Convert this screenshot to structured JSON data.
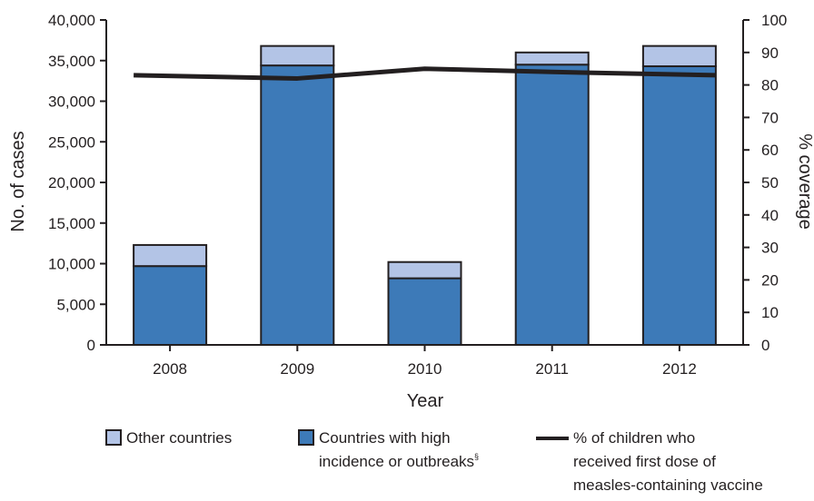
{
  "chart_data": {
    "type": "bar",
    "stacked": true,
    "categories": [
      "2008",
      "2009",
      "2010",
      "2011",
      "2012"
    ],
    "series": [
      {
        "name": "Countries with high incidence or outbreaks§",
        "axis": "left",
        "type": "bar",
        "values": [
          9700,
          34400,
          8200,
          34500,
          34300
        ],
        "color": "#3d7ab8"
      },
      {
        "name": "Other countries",
        "axis": "left",
        "type": "bar",
        "values": [
          2600,
          2400,
          2000,
          1500,
          2500
        ],
        "color": "#b3c4e6"
      },
      {
        "name": "% of children who received first dose of measles-containing vaccine",
        "axis": "right",
        "type": "line",
        "values": [
          83,
          82,
          85,
          84,
          83
        ],
        "color": "#231f20"
      }
    ],
    "xlabel": "Year",
    "ylabel": "No. of cases",
    "y2label": "% coverage",
    "ylim": [
      0,
      40000
    ],
    "y2lim": [
      0,
      100
    ],
    "yticks": [
      "0",
      "5,000",
      "10,000",
      "15,000",
      "20,000",
      "25,000",
      "30,000",
      "35,000",
      "40,000"
    ],
    "y2ticks": [
      "0",
      "10",
      "20",
      "30",
      "40",
      "50",
      "60",
      "70",
      "80",
      "90",
      "100"
    ],
    "grid": false,
    "legend_position": "bottom"
  },
  "legend": {
    "other_label": "Other countries",
    "high_label": "Countries with high\nincidence or outbreaks",
    "high_superscript": "§",
    "line_label": "% of children who\nreceived first dose of\nmeasles-containing vaccine"
  }
}
